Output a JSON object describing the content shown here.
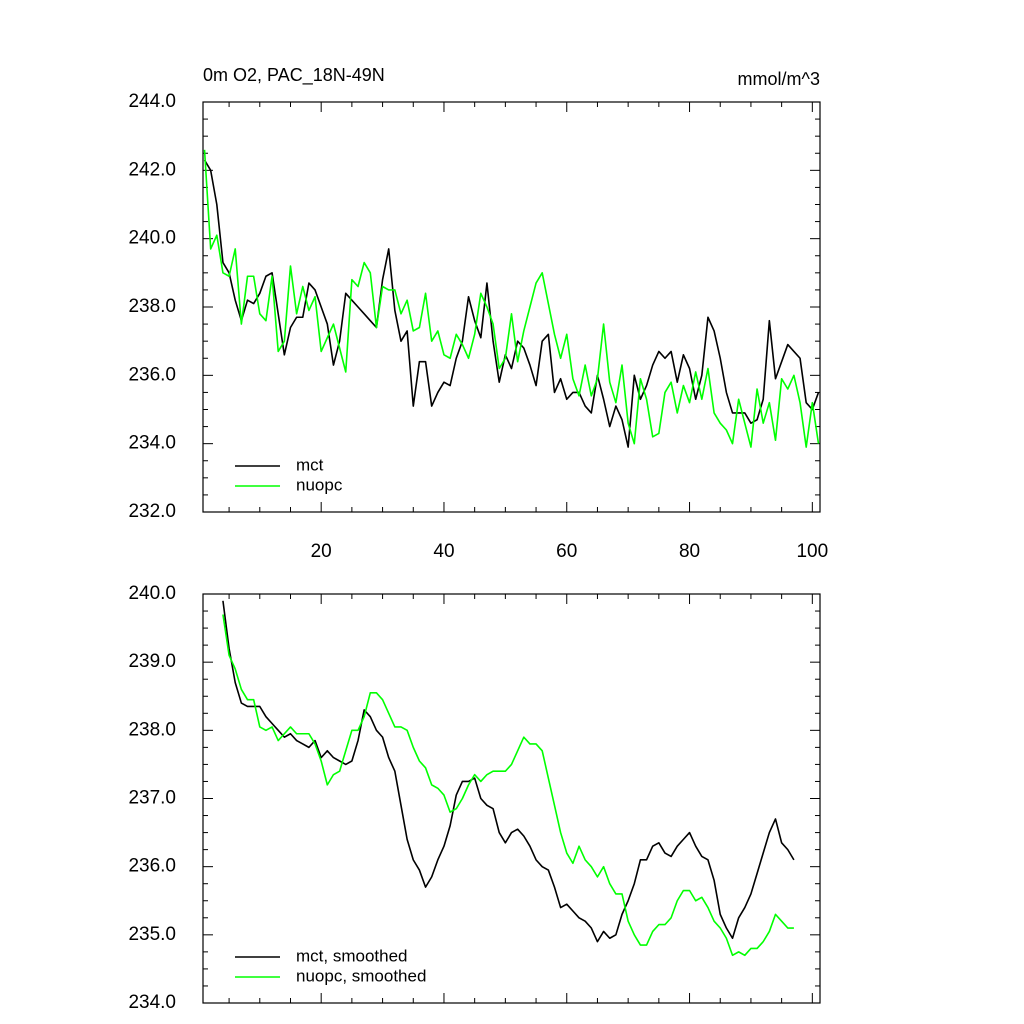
{
  "chart_data": [
    {
      "type": "line",
      "title": "0m O2, PAC_18N-49N",
      "right_title": "mmol/m^3",
      "x": [
        1,
        2,
        3,
        4,
        5,
        6,
        7,
        8,
        9,
        10,
        11,
        12,
        13,
        14,
        15,
        16,
        17,
        18,
        19,
        20,
        21,
        22,
        23,
        24,
        25,
        26,
        27,
        28,
        29,
        30,
        31,
        32,
        33,
        34,
        35,
        36,
        37,
        38,
        39,
        40,
        41,
        42,
        43,
        44,
        45,
        46,
        47,
        48,
        49,
        50,
        51,
        52,
        53,
        54,
        55,
        56,
        57,
        58,
        59,
        60,
        61,
        62,
        63,
        64,
        65,
        66,
        67,
        68,
        69,
        70,
        71,
        72,
        73,
        74,
        75,
        76,
        77,
        78,
        79,
        80,
        81,
        82,
        83,
        84,
        85,
        86,
        87,
        88,
        89,
        90,
        91,
        92,
        93,
        94,
        95,
        96,
        97,
        98,
        99,
        100,
        101
      ],
      "series": [
        {
          "name": "mct",
          "color": "#000000",
          "values": [
            242.3,
            242.0,
            241.0,
            239.3,
            239.0,
            238.2,
            237.6,
            238.2,
            238.1,
            238.4,
            238.9,
            239.0,
            237.8,
            236.6,
            237.4,
            237.7,
            237.7,
            238.7,
            238.5,
            238.0,
            237.5,
            236.3,
            237.0,
            238.4,
            238.2,
            238.0,
            237.8,
            237.6,
            237.4,
            238.8,
            239.7,
            237.9,
            237.0,
            237.3,
            235.1,
            236.4,
            236.4,
            235.1,
            235.5,
            235.8,
            235.7,
            236.5,
            237.0,
            238.3,
            237.6,
            237.1,
            238.7,
            237.0,
            235.8,
            236.6,
            236.2,
            237.0,
            236.8,
            236.3,
            235.7,
            237.0,
            237.2,
            235.5,
            235.9,
            235.3,
            235.5,
            235.5,
            235.1,
            234.9,
            236.0,
            235.3,
            234.5,
            235.1,
            234.7,
            233.9,
            236.0,
            235.3,
            235.7,
            236.3,
            236.7,
            236.5,
            236.7,
            235.8,
            236.6,
            236.2,
            235.3,
            236.0,
            237.7,
            237.3,
            236.5,
            235.5,
            234.9,
            234.9,
            234.9,
            234.6,
            234.7,
            235.3,
            237.6,
            235.9,
            236.4,
            236.9,
            236.7,
            236.5,
            235.2,
            235.0,
            235.5
          ]
        },
        {
          "name": "nuopc",
          "color": "#00ff00",
          "values": [
            242.6,
            239.7,
            240.1,
            239.0,
            238.9,
            239.7,
            237.5,
            238.9,
            238.9,
            237.8,
            237.6,
            238.9,
            236.7,
            237.0,
            239.2,
            237.8,
            238.6,
            237.9,
            238.3,
            236.7,
            237.1,
            237.5,
            236.8,
            236.1,
            238.8,
            238.6,
            239.3,
            239.0,
            237.4,
            238.6,
            238.5,
            238.5,
            237.8,
            238.2,
            237.3,
            237.4,
            238.4,
            237.0,
            237.3,
            236.6,
            236.5,
            237.2,
            236.9,
            236.5,
            237.2,
            238.4,
            238.0,
            237.5,
            236.2,
            236.5,
            237.8,
            236.4,
            237.3,
            238.0,
            238.7,
            239.0,
            238.1,
            237.2,
            236.5,
            237.2,
            235.9,
            235.4,
            236.3,
            235.4,
            235.9,
            237.5,
            235.8,
            235.2,
            236.3,
            234.6,
            234.0,
            235.9,
            235.3,
            234.2,
            234.3,
            235.5,
            235.8,
            234.9,
            235.7,
            235.2,
            236.1,
            235.3,
            236.2,
            234.9,
            234.6,
            234.4,
            234.0,
            235.3,
            234.6,
            233.9,
            235.6,
            234.6,
            235.2,
            234.1,
            235.9,
            235.6,
            236.0,
            235.2,
            233.9,
            235.2,
            234.0
          ]
        }
      ],
      "xlim": [
        0.75,
        101.25
      ],
      "xticks": [
        20,
        40,
        60,
        80,
        100
      ],
      "xtick_labels": true,
      "ylim": [
        232,
        244
      ],
      "yticks": [
        {
          "value": 232,
          "label": "232.0"
        },
        {
          "value": 234,
          "label": "234.0"
        },
        {
          "value": 236,
          "label": "236.0"
        },
        {
          "value": 238,
          "label": "238.0"
        },
        {
          "value": 240,
          "label": "240.0"
        },
        {
          "value": 242,
          "label": "242.0"
        },
        {
          "value": 244,
          "label": "244.0"
        }
      ],
      "legend": "lower-left"
    },
    {
      "type": "line",
      "x": [
        4,
        5,
        6,
        7,
        8,
        9,
        10,
        11,
        12,
        13,
        14,
        15,
        16,
        17,
        18,
        19,
        20,
        21,
        22,
        23,
        24,
        25,
        26,
        27,
        28,
        29,
        30,
        31,
        32,
        33,
        34,
        35,
        36,
        37,
        38,
        39,
        40,
        41,
        42,
        43,
        44,
        45,
        46,
        47,
        48,
        49,
        50,
        51,
        52,
        53,
        54,
        55,
        56,
        57,
        58,
        59,
        60,
        61,
        62,
        63,
        64,
        65,
        66,
        67,
        68,
        69,
        70,
        71,
        72,
        73,
        74,
        75,
        76,
        77,
        78,
        79,
        80,
        81,
        82,
        83,
        84,
        85,
        86,
        87,
        88,
        89,
        90,
        91,
        92,
        93,
        94,
        95,
        96,
        97
      ],
      "series": [
        {
          "name": "mct, smoothed",
          "color": "#000000",
          "values": [
            239.9,
            239.2,
            238.7,
            238.4,
            238.35,
            238.35,
            238.35,
            238.2,
            238.1,
            238.0,
            237.9,
            237.95,
            237.85,
            237.8,
            237.75,
            237.85,
            237.6,
            237.7,
            237.6,
            237.55,
            237.5,
            237.55,
            237.85,
            238.3,
            238.2,
            238.0,
            237.9,
            237.6,
            237.4,
            236.9,
            236.4,
            236.1,
            235.95,
            235.7,
            235.85,
            236.1,
            236.3,
            236.6,
            237.05,
            237.25,
            237.25,
            237.3,
            237.0,
            236.9,
            236.85,
            236.5,
            236.35,
            236.5,
            236.55,
            236.45,
            236.3,
            236.1,
            236.0,
            235.95,
            235.7,
            235.4,
            235.45,
            235.35,
            235.25,
            235.2,
            235.1,
            234.9,
            235.05,
            234.95,
            235.0,
            235.3,
            235.5,
            235.75,
            236.1,
            236.1,
            236.3,
            236.35,
            236.2,
            236.15,
            236.3,
            236.4,
            236.5,
            236.3,
            236.15,
            236.1,
            235.8,
            235.3,
            235.1,
            234.95,
            235.25,
            235.4,
            235.6,
            235.9,
            236.2,
            236.5,
            236.7,
            236.35,
            236.25,
            236.1
          ]
        },
        {
          "name": "nuopc, smoothed",
          "color": "#00ff00",
          "values": [
            239.7,
            239.1,
            238.9,
            238.6,
            238.45,
            238.45,
            238.05,
            238.0,
            238.05,
            237.85,
            237.95,
            238.05,
            237.95,
            237.95,
            237.95,
            237.8,
            237.55,
            237.2,
            237.35,
            237.4,
            237.7,
            238.0,
            238.0,
            238.2,
            238.55,
            238.55,
            238.45,
            238.25,
            238.05,
            238.05,
            238.0,
            237.75,
            237.55,
            237.45,
            237.2,
            237.15,
            237.05,
            236.8,
            236.85,
            237.0,
            237.2,
            237.35,
            237.25,
            237.35,
            237.4,
            237.4,
            237.4,
            237.5,
            237.7,
            237.9,
            237.8,
            237.8,
            237.7,
            237.3,
            236.9,
            236.5,
            236.2,
            236.05,
            236.3,
            236.1,
            236.0,
            235.85,
            236.0,
            235.75,
            235.6,
            235.6,
            235.2,
            235.0,
            234.85,
            234.85,
            235.05,
            235.15,
            235.15,
            235.25,
            235.5,
            235.65,
            235.65,
            235.5,
            235.55,
            235.4,
            235.2,
            235.1,
            234.95,
            234.7,
            234.75,
            234.7,
            234.8,
            234.8,
            234.9,
            235.05,
            235.3,
            235.2,
            235.1,
            235.1
          ]
        }
      ],
      "xlim": [
        0.75,
        101.25
      ],
      "xticks": [
        20,
        40,
        60,
        80,
        100
      ],
      "xtick_labels": false,
      "ylim": [
        234,
        240
      ],
      "yticks": [
        {
          "value": 234,
          "label": "234.0"
        },
        {
          "value": 235,
          "label": "235.0"
        },
        {
          "value": 236,
          "label": "236.0"
        },
        {
          "value": 237,
          "label": "237.0"
        },
        {
          "value": 238,
          "label": "238.0"
        },
        {
          "value": 239,
          "label": "239.0"
        },
        {
          "value": 240,
          "label": "240.0"
        }
      ],
      "legend": "lower-left"
    }
  ]
}
